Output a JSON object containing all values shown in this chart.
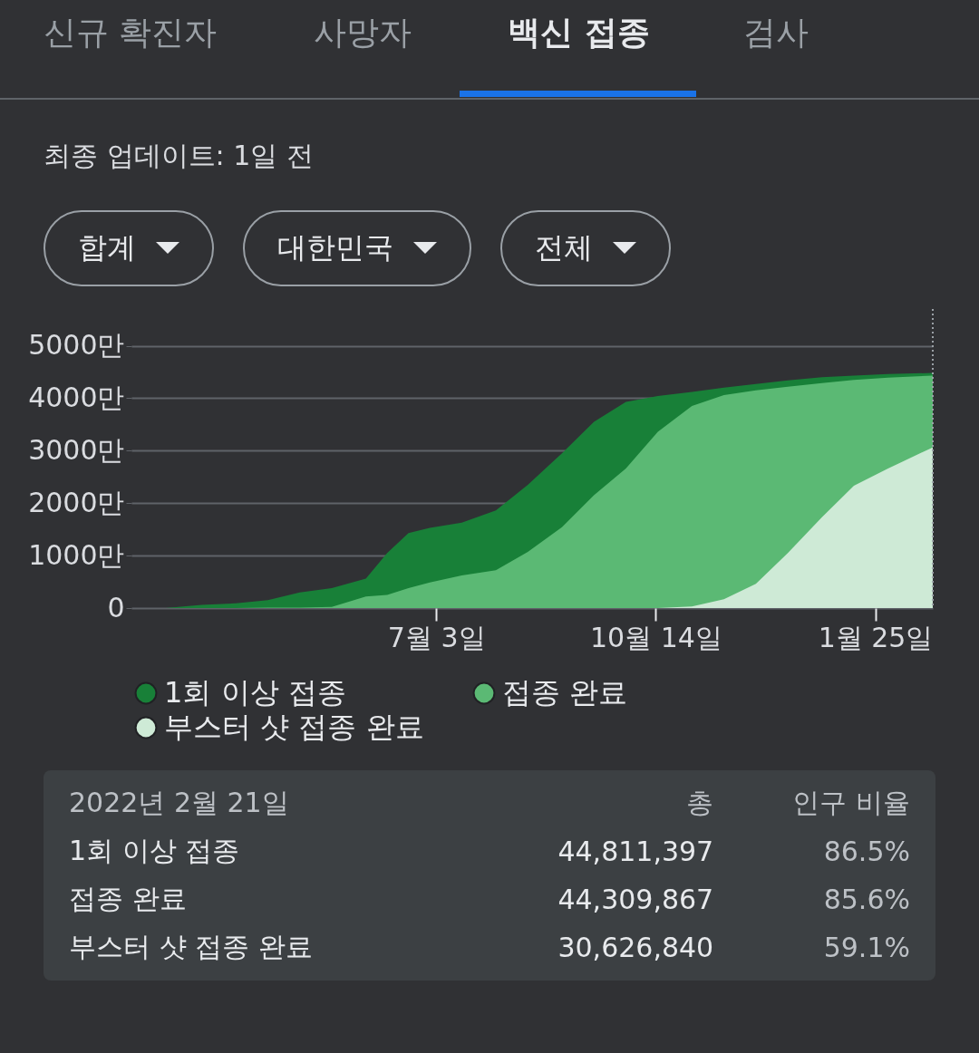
{
  "chart_data": {
    "type": "area",
    "x": [
      "2021-02-26",
      "2021-03-15",
      "2021-03-31",
      "2021-04-15",
      "2021-04-30",
      "2021-05-15",
      "2021-05-31",
      "2021-06-10",
      "2021-06-20",
      "2021-06-30",
      "2021-07-15",
      "2021-07-31",
      "2021-08-15",
      "2021-08-31",
      "2021-09-15",
      "2021-09-30",
      "2021-10-15",
      "2021-10-31",
      "2021-11-15",
      "2021-11-30",
      "2021-12-15",
      "2021-12-31",
      "2022-01-15",
      "2022-01-31",
      "2022-02-21"
    ],
    "series": [
      {
        "name": "1회 이상 접종",
        "color": "#188038",
        "values": [
          0,
          60,
          90,
          150,
          300,
          380,
          560,
          1050,
          1430,
          1530,
          1630,
          1860,
          2350,
          2950,
          3550,
          3930,
          4040,
          4120,
          4200,
          4270,
          4340,
          4400,
          4430,
          4460,
          4481
        ]
      },
      {
        "name": "접종 완료",
        "color": "#5bb974",
        "values": [
          0,
          0,
          0,
          10,
          10,
          20,
          220,
          250,
          380,
          490,
          620,
          720,
          1070,
          1540,
          2150,
          2660,
          3360,
          3850,
          4060,
          4150,
          4220,
          4290,
          4350,
          4390,
          4431
        ]
      },
      {
        "name": "부스터 샷 접종 완료",
        "color": "#ceead6",
        "values": [
          null,
          null,
          null,
          null,
          null,
          null,
          null,
          null,
          null,
          null,
          null,
          null,
          null,
          null,
          null,
          null,
          0,
          30,
          170,
          460,
          1050,
          1730,
          2330,
          2660,
          3063
        ]
      }
    ],
    "xlim": [
      "2021-02-10",
      "2022-02-21"
    ],
    "xticks": [
      {
        "value": "2021-07-03",
        "label": "7월 3일"
      },
      {
        "value": "2021-10-14",
        "label": "10월 14일"
      },
      {
        "value": "2022-01-25",
        "label": "1월 25일"
      }
    ],
    "ylim": [
      0,
      5700
    ],
    "yticks": [
      0,
      {
        "value": 1000,
        "label": "1000만"
      },
      {
        "value": 2000,
        "label": "2000만"
      },
      {
        "value": 3000,
        "label": "3000만"
      },
      {
        "value": 4000,
        "label": "4000만"
      },
      {
        "value": 5000,
        "label": "5000만"
      }
    ],
    "grid": "y",
    "legend": "bottom",
    "marker": "none",
    "ref_lines": [
      {
        "axis": "x",
        "value": "2022-02-21",
        "color": "#9aa0a6",
        "line_style": "dotted"
      }
    ],
    "annotations": [
      "신규 확진자",
      "사망자",
      "백신 접종",
      "검사",
      "최종 업데이트: 1일 전",
      "합계",
      "대한민국",
      "전체",
      "2022년 2월 21일",
      "총",
      "인구 비율",
      "44,811,397",
      "86.5%",
      "44,309,867",
      "85.6%",
      "30,626,840",
      "59.1%"
    ]
  }
}
